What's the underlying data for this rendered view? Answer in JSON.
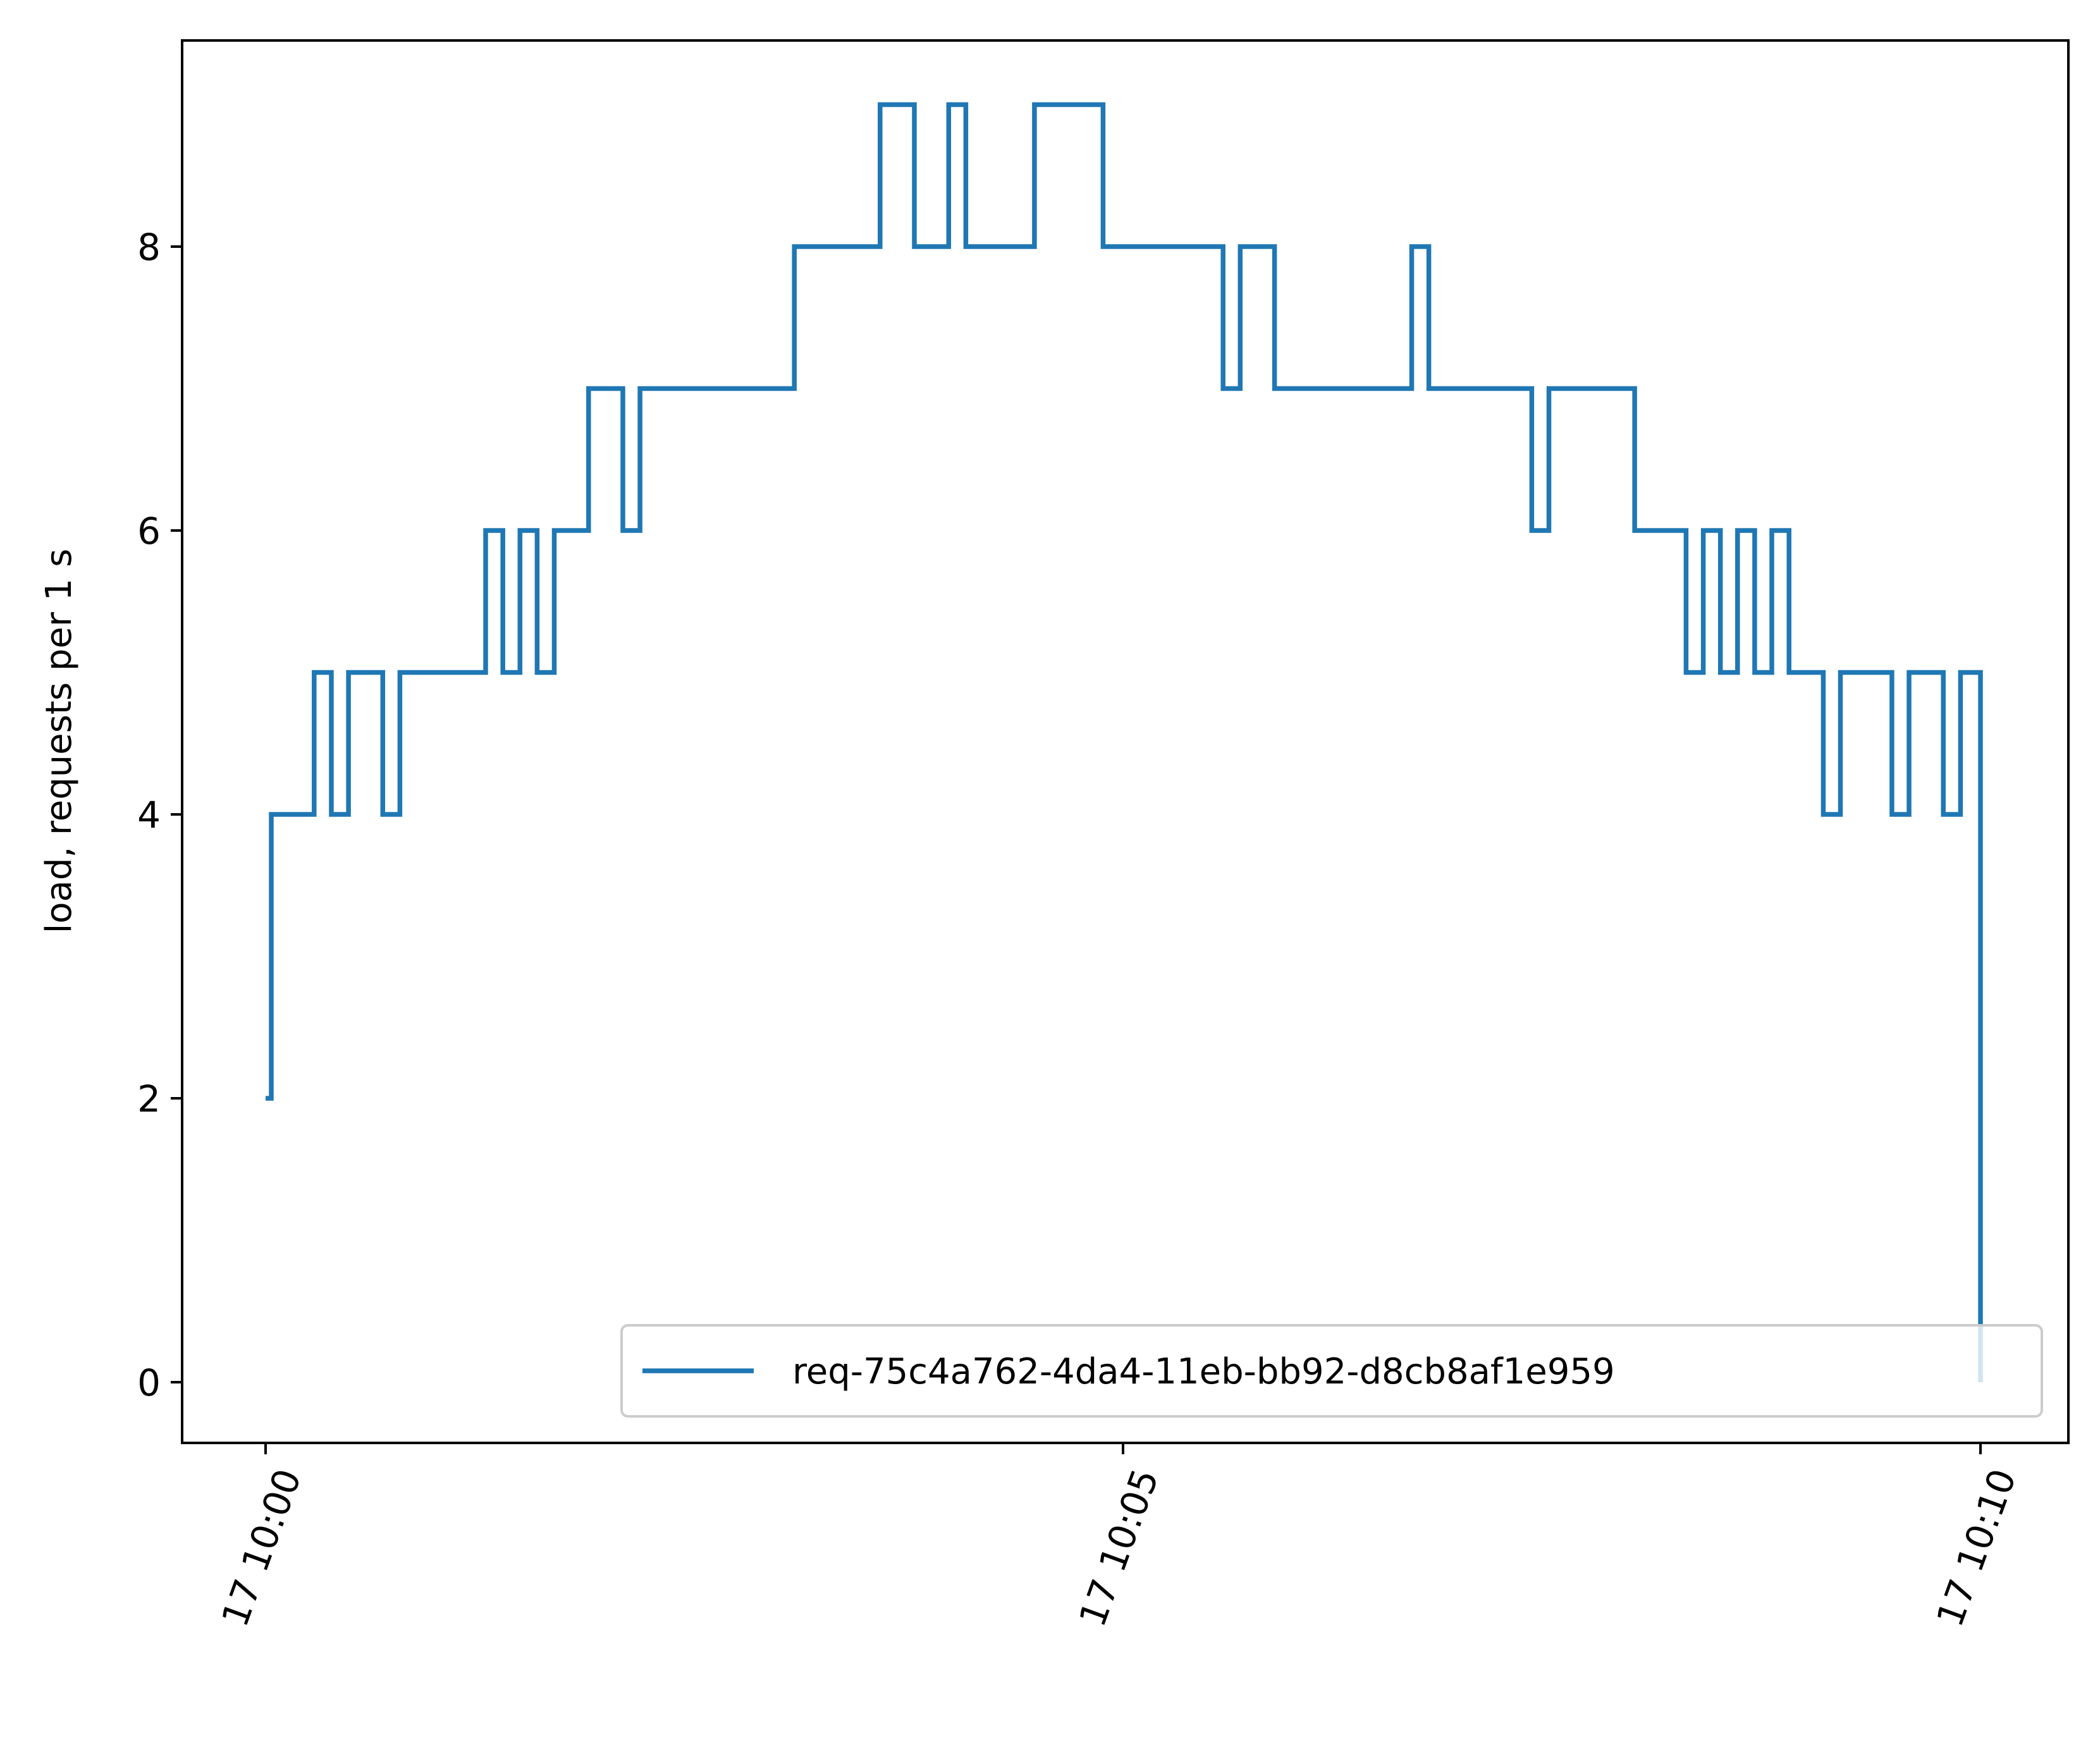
{
  "chart_data": {
    "type": "line",
    "title": "",
    "xlabel": "",
    "ylabel": "load, requests per 1 s",
    "x_ticks": [
      "17 10:00",
      "17 10:05",
      "17 10:10"
    ],
    "y_ticks": [
      "0",
      "2",
      "4",
      "6",
      "8"
    ],
    "xlim": [
      "10:00",
      "10:10"
    ],
    "ylim": [
      -0.45,
      9.45
    ],
    "grid": false,
    "legend": "lower-right",
    "series": [
      {
        "name": "req-75c4a762-4da4-11eb-bb92-d8cb8af1e959",
        "color": "#1f77b4",
        "step": "post",
        "x": [
          "10:00:00",
          "10:00:02",
          "10:00:17",
          "10:00:23",
          "10:00:29",
          "10:00:41",
          "10:00:47",
          "10:00:53",
          "10:01:17",
          "10:01:23",
          "10:01:29",
          "10:01:35",
          "10:01:41",
          "10:01:47",
          "10:01:53",
          "10:02:05",
          "10:02:11",
          "10:02:35",
          "10:03:05",
          "10:03:29",
          "10:03:35",
          "10:03:47",
          "10:03:59",
          "10:04:05",
          "10:04:29",
          "10:04:53",
          "10:05:23",
          "10:05:35",
          "10:05:41",
          "10:05:53",
          "10:06:41",
          "10:06:47",
          "10:07:23",
          "10:07:29",
          "10:07:59",
          "10:08:11",
          "10:08:17",
          "10:08:23",
          "10:08:29",
          "10:08:35",
          "10:08:41",
          "10:08:47",
          "10:08:53",
          "10:09:05",
          "10:09:11",
          "10:09:29",
          "10:09:35",
          "10:09:47",
          "10:09:53",
          "10:10:00"
        ],
        "y": [
          2,
          4,
          5,
          4,
          5,
          4,
          5,
          5,
          6,
          5,
          6,
          5,
          6,
          6,
          7,
          6,
          7,
          7,
          8,
          8,
          9,
          8,
          9,
          8,
          9,
          8,
          8,
          7,
          8,
          7,
          8,
          7,
          6,
          7,
          6,
          6,
          5,
          6,
          5,
          6,
          5,
          6,
          5,
          4,
          5,
          4,
          5,
          4,
          5,
          0
        ]
      }
    ]
  },
  "legend": {
    "label": "req-75c4a762-4da4-11eb-bb92-d8cb8af1e959"
  }
}
